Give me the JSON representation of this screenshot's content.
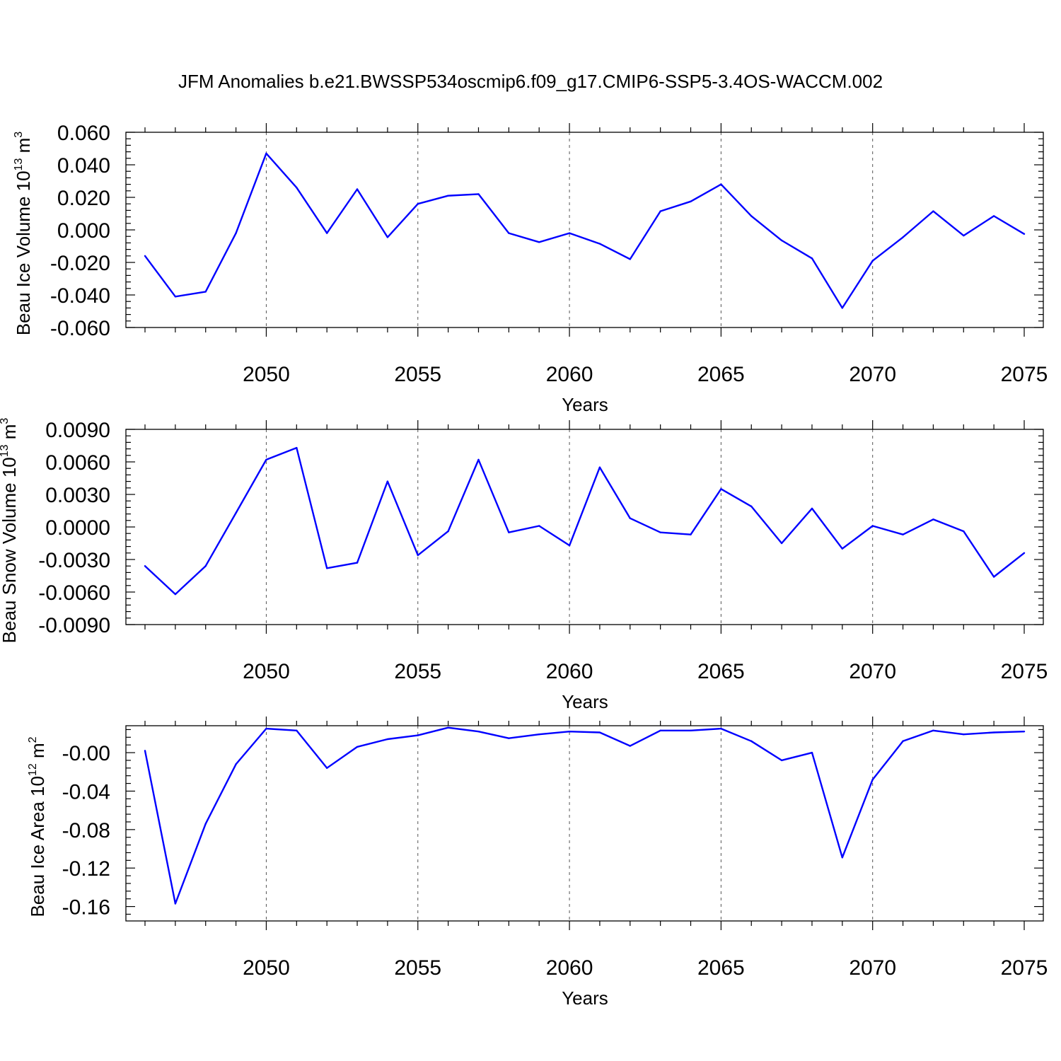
{
  "title": "JFM Anomalies b.e21.BWSSP534oscmip6.f09_g17.CMIP6-SSP5-3.4OS-WACCM.002",
  "colors": {
    "series": "#0000ff",
    "axes": "#000000",
    "grid": "#555555"
  },
  "chart_data": [
    {
      "type": "line",
      "ylabel": "Beau Ice Volume",
      "ylabel_units": {
        "base": "10",
        "exp": "13",
        "unit": "m",
        "unit_exp": "3"
      },
      "xlabel": "Years",
      "xlim": [
        2046,
        2075
      ],
      "ylim": [
        -0.06,
        0.06
      ],
      "yticks": [
        {
          "value": 0.06,
          "label": "0.060"
        },
        {
          "value": 0.04,
          "label": "0.040"
        },
        {
          "value": 0.02,
          "label": "0.020"
        },
        {
          "value": 0.0,
          "label": "0.000"
        },
        {
          "value": -0.02,
          "label": "-0.020"
        },
        {
          "value": -0.04,
          "label": "-0.040"
        },
        {
          "value": -0.06,
          "label": "-0.060"
        }
      ],
      "xticks": [
        {
          "value": 2050,
          "label": "2050"
        },
        {
          "value": 2055,
          "label": "2055"
        },
        {
          "value": 2060,
          "label": "2060"
        },
        {
          "value": 2065,
          "label": "2065"
        },
        {
          "value": 2070,
          "label": "2070"
        },
        {
          "value": 2075,
          "label": "2075"
        }
      ],
      "x": [
        2046,
        2047,
        2048,
        2049,
        2050,
        2051,
        2052,
        2053,
        2054,
        2055,
        2056,
        2057,
        2058,
        2059,
        2060,
        2061,
        2062,
        2063,
        2064,
        2065,
        2066,
        2067,
        2068,
        2069,
        2070,
        2071,
        2072,
        2073,
        2074,
        2075
      ],
      "values": [
        -0.016,
        -0.041,
        -0.038,
        -0.002,
        0.047,
        0.026,
        -0.002,
        0.025,
        -0.0045,
        0.016,
        0.021,
        0.022,
        -0.002,
        -0.0075,
        -0.002,
        -0.0085,
        -0.018,
        0.0115,
        0.0175,
        0.028,
        0.0085,
        -0.0065,
        -0.0175,
        -0.048,
        -0.019,
        -0.0045,
        0.0115,
        -0.0035,
        0.0085,
        -0.0025
      ]
    },
    {
      "type": "line",
      "ylabel": "Beau Snow Volume",
      "ylabel_units": {
        "base": "10",
        "exp": "13",
        "unit": "m",
        "unit_exp": "3"
      },
      "xlabel": "Years",
      "xlim": [
        2046,
        2075
      ],
      "ylim": [
        -0.009,
        0.009
      ],
      "yticks": [
        {
          "value": 0.009,
          "label": "0.0090"
        },
        {
          "value": 0.006,
          "label": "0.0060"
        },
        {
          "value": 0.003,
          "label": "0.0030"
        },
        {
          "value": 0.0,
          "label": "0.0000"
        },
        {
          "value": -0.003,
          "label": "-0.0030"
        },
        {
          "value": -0.006,
          "label": "-0.0060"
        },
        {
          "value": -0.009,
          "label": "-0.0090"
        }
      ],
      "xticks": [
        {
          "value": 2050,
          "label": "2050"
        },
        {
          "value": 2055,
          "label": "2055"
        },
        {
          "value": 2060,
          "label": "2060"
        },
        {
          "value": 2065,
          "label": "2065"
        },
        {
          "value": 2070,
          "label": "2070"
        },
        {
          "value": 2075,
          "label": "2075"
        }
      ],
      "x": [
        2046,
        2047,
        2048,
        2049,
        2050,
        2051,
        2052,
        2053,
        2054,
        2055,
        2056,
        2057,
        2058,
        2059,
        2060,
        2061,
        2062,
        2063,
        2064,
        2065,
        2066,
        2067,
        2068,
        2069,
        2070,
        2071,
        2072,
        2073,
        2074,
        2075
      ],
      "values": [
        -0.0036,
        -0.0062,
        -0.0036,
        0.0013,
        0.0062,
        0.0073,
        -0.0038,
        -0.0033,
        0.0042,
        -0.0026,
        -0.0004,
        0.0062,
        -0.0005,
        0.0001,
        -0.0017,
        0.0055,
        0.0008,
        -0.0005,
        -0.0007,
        0.0035,
        0.0019,
        -0.0015,
        0.0017,
        -0.002,
        0.0001,
        -0.0007,
        0.0007,
        -0.0004,
        -0.0046,
        -0.0024
      ]
    },
    {
      "type": "line",
      "ylabel": "Beau Ice Area",
      "ylabel_units": {
        "base": "10",
        "exp": "12",
        "unit": "m",
        "unit_exp": "2"
      },
      "xlabel": "Years",
      "xlim": [
        2046,
        2075
      ],
      "ylim": [
        -0.175,
        0.028
      ],
      "yticks": [
        {
          "value": 0.0,
          "label": "-0.00"
        },
        {
          "value": -0.04,
          "label": "-0.04"
        },
        {
          "value": -0.08,
          "label": "-0.08"
        },
        {
          "value": -0.12,
          "label": "-0.12"
        },
        {
          "value": -0.16,
          "label": "-0.16"
        }
      ],
      "xticks": [
        {
          "value": 2050,
          "label": "2050"
        },
        {
          "value": 2055,
          "label": "2055"
        },
        {
          "value": 2060,
          "label": "2060"
        },
        {
          "value": 2065,
          "label": "2065"
        },
        {
          "value": 2070,
          "label": "2070"
        },
        {
          "value": 2075,
          "label": "2075"
        }
      ],
      "x": [
        2046,
        2047,
        2048,
        2049,
        2050,
        2051,
        2052,
        2053,
        2054,
        2055,
        2056,
        2057,
        2058,
        2059,
        2060,
        2061,
        2062,
        2063,
        2064,
        2065,
        2066,
        2067,
        2068,
        2069,
        2070,
        2071,
        2072,
        2073,
        2074,
        2075
      ],
      "values": [
        0.002,
        -0.157,
        -0.074,
        -0.012,
        0.025,
        0.023,
        -0.016,
        0.006,
        0.014,
        0.018,
        0.026,
        0.022,
        0.015,
        0.019,
        0.022,
        0.021,
        0.007,
        0.023,
        0.023,
        0.025,
        0.012,
        -0.008,
        0.0,
        -0.109,
        -0.028,
        0.012,
        0.023,
        0.019,
        0.021,
        0.022
      ]
    }
  ]
}
